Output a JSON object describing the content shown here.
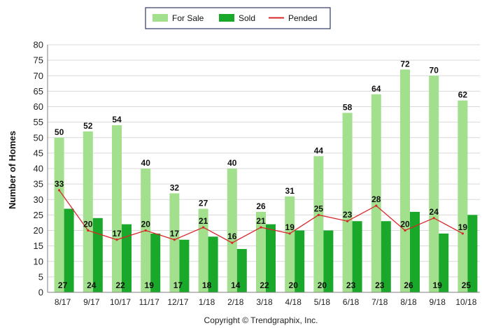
{
  "chart_data": {
    "type": "bar",
    "categories": [
      "8/17",
      "9/17",
      "10/17",
      "11/17",
      "12/17",
      "1/18",
      "2/18",
      "3/18",
      "4/18",
      "5/18",
      "6/18",
      "7/18",
      "8/18",
      "9/18",
      "10/18"
    ],
    "series": [
      {
        "name": "For Sale",
        "type": "bar",
        "color": "#a3e08e",
        "values": [
          50,
          52,
          54,
          40,
          32,
          27,
          40,
          26,
          31,
          44,
          58,
          64,
          72,
          70,
          62
        ]
      },
      {
        "name": "Sold",
        "type": "bar",
        "color": "#1aa82a",
        "values": [
          27,
          24,
          22,
          19,
          17,
          18,
          14,
          22,
          20,
          20,
          23,
          23,
          26,
          19,
          25
        ]
      },
      {
        "name": "Pended",
        "type": "line",
        "color": "#d8262b",
        "values": [
          33,
          20,
          17,
          20,
          17,
          21,
          16,
          21,
          19,
          25,
          23,
          28,
          20,
          24,
          19
        ]
      }
    ],
    "ylabel": "Number of Homes",
    "xlabel": "",
    "ylim": [
      0,
      80
    ],
    "yticks": [
      0,
      5,
      10,
      15,
      20,
      25,
      30,
      35,
      40,
      45,
      50,
      55,
      60,
      65,
      70,
      75,
      80
    ],
    "grid": true,
    "legend_position": "top-center"
  },
  "footer": {
    "copyright": "Copyright © Trendgraphix, Inc."
  }
}
